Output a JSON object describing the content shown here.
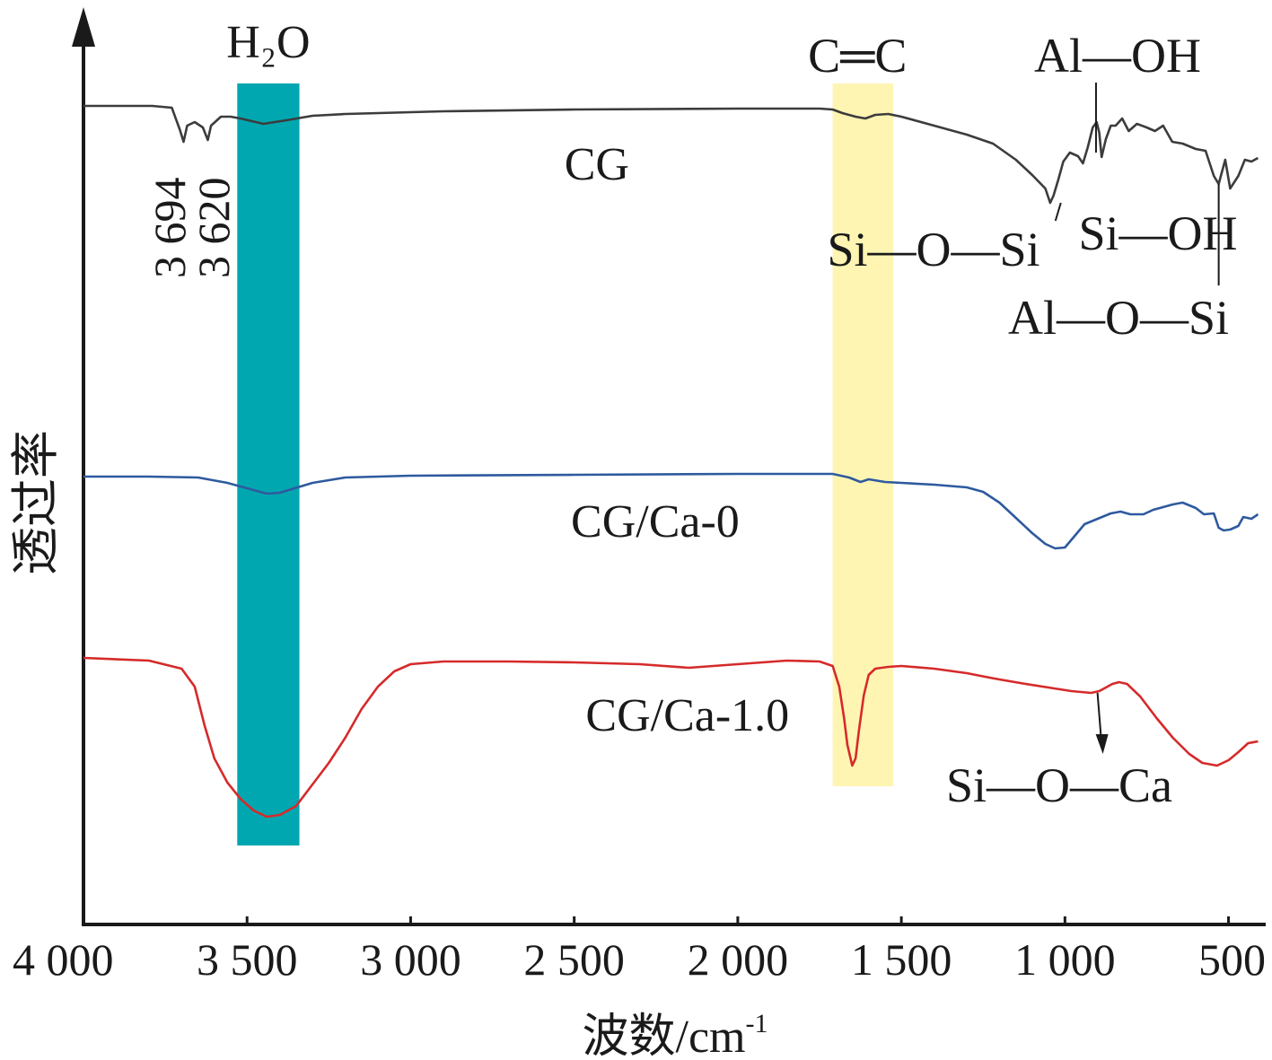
{
  "chart_data": {
    "type": "line",
    "title": "",
    "xlabel": "波数/cm",
    "xlabel_sup": "-1",
    "ylabel": "透过率",
    "xlim": [
      4000,
      400
    ],
    "x_ticks": [
      {
        "value": 4000,
        "label": "4 000"
      },
      {
        "value": 3500,
        "label": "3 500"
      },
      {
        "value": 3000,
        "label": "3 000"
      },
      {
        "value": 2500,
        "label": "2 500"
      },
      {
        "value": 2000,
        "label": "2 000"
      },
      {
        "value": 1500,
        "label": "1 500"
      },
      {
        "value": 1000,
        "label": "1 000"
      },
      {
        "value": 500,
        "label": "500"
      }
    ],
    "bands": [
      {
        "name": "h2o-band",
        "from": 3530,
        "to": 3340,
        "color": "#00a7b0",
        "label": "H₂O"
      },
      {
        "name": "cc-band",
        "from": 1710,
        "to": 1525,
        "color": "#fff5b3",
        "label": "C═C"
      }
    ],
    "series": [
      {
        "name": "CG",
        "color": "#3c3c3c",
        "points": [
          [
            4000,
            118
          ],
          [
            3790,
            118
          ],
          [
            3730,
            120
          ],
          [
            3705,
            145
          ],
          [
            3694,
            158
          ],
          [
            3683,
            140
          ],
          [
            3660,
            136
          ],
          [
            3635,
            142
          ],
          [
            3620,
            156
          ],
          [
            3610,
            140
          ],
          [
            3580,
            130
          ],
          [
            3550,
            130
          ],
          [
            3520,
            132
          ],
          [
            3450,
            138
          ],
          [
            3380,
            134
          ],
          [
            3300,
            129
          ],
          [
            3200,
            127
          ],
          [
            3000,
            125
          ],
          [
            2900,
            124
          ],
          [
            2500,
            122
          ],
          [
            2000,
            121
          ],
          [
            1750,
            121
          ],
          [
            1710,
            122
          ],
          [
            1680,
            126
          ],
          [
            1640,
            130
          ],
          [
            1610,
            132
          ],
          [
            1580,
            128
          ],
          [
            1540,
            127
          ],
          [
            1500,
            130
          ],
          [
            1400,
            140
          ],
          [
            1300,
            150
          ],
          [
            1220,
            160
          ],
          [
            1150,
            178
          ],
          [
            1100,
            195
          ],
          [
            1060,
            210
          ],
          [
            1045,
            226
          ],
          [
            1035,
            218
          ],
          [
            1020,
            200
          ],
          [
            1005,
            180
          ],
          [
            985,
            170
          ],
          [
            960,
            174
          ],
          [
            945,
            182
          ],
          [
            930,
            164
          ],
          [
            915,
            142
          ],
          [
            903,
            136
          ],
          [
            895,
            148
          ],
          [
            888,
            175
          ],
          [
            875,
            155
          ],
          [
            860,
            140
          ],
          [
            845,
            140
          ],
          [
            825,
            132
          ],
          [
            805,
            146
          ],
          [
            780,
            138
          ],
          [
            750,
            142
          ],
          [
            725,
            146
          ],
          [
            700,
            140
          ],
          [
            672,
            158
          ],
          [
            640,
            160
          ],
          [
            600,
            166
          ],
          [
            570,
            168
          ],
          [
            545,
            196
          ],
          [
            530,
            205
          ],
          [
            510,
            178
          ],
          [
            495,
            210
          ],
          [
            470,
            196
          ],
          [
            450,
            178
          ],
          [
            430,
            180
          ],
          [
            410,
            176
          ]
        ]
      },
      {
        "name": "CG/Ca-0",
        "color": "#2e5a9e",
        "points": [
          [
            4000,
            531
          ],
          [
            3800,
            531
          ],
          [
            3650,
            532
          ],
          [
            3560,
            538
          ],
          [
            3500,
            544
          ],
          [
            3440,
            550
          ],
          [
            3400,
            549
          ],
          [
            3300,
            538
          ],
          [
            3200,
            532
          ],
          [
            3000,
            530
          ],
          [
            2500,
            529
          ],
          [
            2000,
            528
          ],
          [
            1710,
            528
          ],
          [
            1660,
            532
          ],
          [
            1625,
            537
          ],
          [
            1600,
            534
          ],
          [
            1550,
            537
          ],
          [
            1500,
            538
          ],
          [
            1400,
            540
          ],
          [
            1300,
            543
          ],
          [
            1250,
            548
          ],
          [
            1200,
            560
          ],
          [
            1150,
            577
          ],
          [
            1100,
            594
          ],
          [
            1060,
            606
          ],
          [
            1030,
            611
          ],
          [
            1000,
            610
          ],
          [
            970,
            597
          ],
          [
            940,
            584
          ],
          [
            900,
            578
          ],
          [
            860,
            572
          ],
          [
            830,
            570
          ],
          [
            800,
            573
          ],
          [
            760,
            573
          ],
          [
            730,
            568
          ],
          [
            700,
            565
          ],
          [
            670,
            562
          ],
          [
            640,
            560
          ],
          [
            600,
            566
          ],
          [
            575,
            573
          ],
          [
            545,
            572
          ],
          [
            530,
            588
          ],
          [
            515,
            591
          ],
          [
            495,
            590
          ],
          [
            470,
            586
          ],
          [
            455,
            576
          ],
          [
            430,
            578
          ],
          [
            410,
            573
          ]
        ]
      },
      {
        "name": "CG/Ca-1.0",
        "color": "#d62a2a",
        "points": [
          [
            4000,
            733
          ],
          [
            3800,
            736
          ],
          [
            3700,
            745
          ],
          [
            3660,
            765
          ],
          [
            3630,
            808
          ],
          [
            3600,
            845
          ],
          [
            3560,
            872
          ],
          [
            3520,
            890
          ],
          [
            3480,
            903
          ],
          [
            3440,
            910
          ],
          [
            3400,
            908
          ],
          [
            3350,
            898
          ],
          [
            3300,
            874
          ],
          [
            3250,
            850
          ],
          [
            3200,
            822
          ],
          [
            3150,
            790
          ],
          [
            3100,
            765
          ],
          [
            3050,
            748
          ],
          [
            3000,
            740
          ],
          [
            2900,
            737
          ],
          [
            2700,
            737
          ],
          [
            2500,
            738
          ],
          [
            2300,
            740
          ],
          [
            2150,
            744
          ],
          [
            2000,
            740
          ],
          [
            1850,
            736
          ],
          [
            1750,
            737
          ],
          [
            1710,
            742
          ],
          [
            1690,
            765
          ],
          [
            1675,
            800
          ],
          [
            1665,
            830
          ],
          [
            1650,
            853
          ],
          [
            1640,
            845
          ],
          [
            1630,
            815
          ],
          [
            1615,
            775
          ],
          [
            1600,
            752
          ],
          [
            1580,
            745
          ],
          [
            1540,
            743
          ],
          [
            1500,
            742
          ],
          [
            1400,
            745
          ],
          [
            1300,
            750
          ],
          [
            1230,
            755
          ],
          [
            1200,
            757
          ],
          [
            1120,
            762
          ],
          [
            1050,
            766
          ],
          [
            980,
            770
          ],
          [
            920,
            772
          ],
          [
            895,
            770
          ],
          [
            880,
            767
          ],
          [
            855,
            762
          ],
          [
            835,
            760
          ],
          [
            810,
            762
          ],
          [
            770,
            776
          ],
          [
            720,
            800
          ],
          [
            670,
            822
          ],
          [
            620,
            840
          ],
          [
            580,
            850
          ],
          [
            535,
            853
          ],
          [
            500,
            847
          ],
          [
            470,
            838
          ],
          [
            440,
            828
          ],
          [
            410,
            826
          ]
        ]
      }
    ],
    "series_labels": [
      {
        "series": "CG",
        "text": "CG",
        "x": 2530
      },
      {
        "series": "CG/Ca-0",
        "text": "CG/Ca-0",
        "x": 2510
      },
      {
        "series": "CG/Ca-1.0",
        "text": "CG/Ca-1.0",
        "x": 2465
      }
    ],
    "annotations": [
      {
        "name": "peak-3694",
        "text": "3 694",
        "x": 3694
      },
      {
        "name": "peak-3620",
        "text": "3 620",
        "x": 3620
      },
      {
        "name": "al-oh",
        "text": "Al—OH",
        "x": 905
      },
      {
        "name": "si-o-si",
        "text": "Si—O—Si",
        "x": 1040
      },
      {
        "name": "si-oh",
        "text": "Si—OH",
        "x": 870
      },
      {
        "name": "al-o-si",
        "text": "Al—O—Si",
        "x": 530
      },
      {
        "name": "si-o-ca",
        "text": "Si—O—Ca",
        "x": 895
      }
    ]
  }
}
